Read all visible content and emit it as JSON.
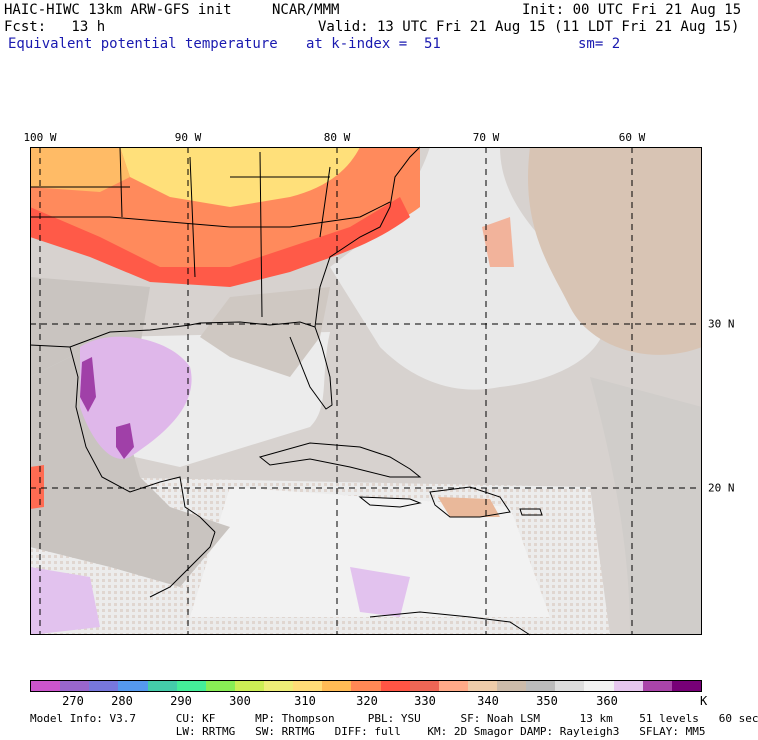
{
  "header": {
    "model": "HAIC-HIWC 13km ARW-GFS init",
    "org": "NCAR/MMM",
    "init": "Init: 00 UTC Fri 21 Aug 15",
    "fcst": "Fcst:   13 h",
    "valid": "Valid: 13 UTC Fri 21 Aug 15 (11 LDT Fri 21 Aug 15)",
    "field": "Equivalent potential temperature",
    "level": "at k-index =  51",
    "smooth": "sm= 2"
  },
  "map": {
    "lon_labels": [
      "100 W",
      "90 W",
      "80 W",
      "70 W",
      "60 W"
    ],
    "lat_labels": [
      "30 N",
      "20 N"
    ]
  },
  "colorbar": {
    "colors": [
      "#cc55cc",
      "#9966cc",
      "#7777dd",
      "#5599ee",
      "#44ccaa",
      "#44ee99",
      "#88ee55",
      "#ccee55",
      "#eeee77",
      "#ffdd77",
      "#ffbb55",
      "#ff8855",
      "#ff5544",
      "#ee6655",
      "#ffaa88",
      "#eeccaa",
      "#ccbbaa",
      "#bbbbbb",
      "#dddddd",
      "#f2f2f2",
      "#e6c6ee",
      "#aa44aa",
      "#770077"
    ],
    "ticks": [
      "270",
      "280",
      "290",
      "300",
      "310",
      "320",
      "330",
      "340",
      "350",
      "360"
    ],
    "unit": "K"
  },
  "footer": {
    "line1": "Model Info: V3.7      CU: KF      MP: Thompson     PBL: YSU      SF: Noah LSM      13 km    51 levels   60 sec",
    "line2": "                      LW: RRTMG   SW: RRTMG   DIFF: full    KM: 2D Smagor DAMP: Rayleigh3   SFLAY: MM5"
  }
}
